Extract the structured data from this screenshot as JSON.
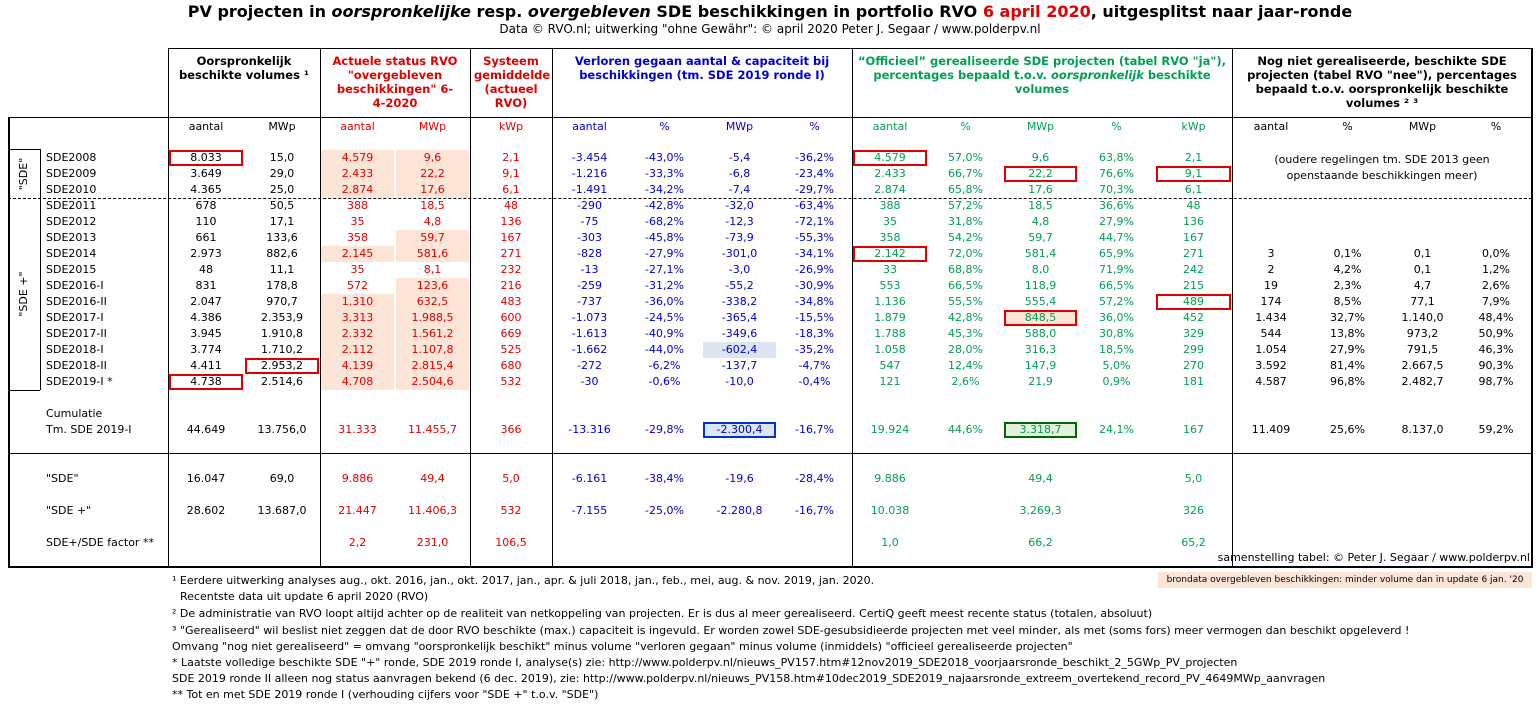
{
  "header": {
    "title": [
      "PV projecten in ",
      "oorspronkelijke",
      " resp. ",
      "overgebleven",
      " SDE beschikkingen in portfolio RVO ",
      "6 april 2020",
      ", uitgesplitst naar jaar-ronde"
    ],
    "subtitle": "Data © RVO.nl; uitwerking \"ohne Gewähr\": © april 2020 Peter J. Segaar / www.polderpv.nl"
  },
  "table": {
    "group_headers": [
      [
        "Oorspronkelijk beschikte volumes ¹"
      ],
      [
        "Actuele status RVO \"overgebleven beschikkingen\" 6-4-2020"
      ],
      [
        "Systeem gemiddelde (actueel RVO)"
      ],
      [
        "Verloren gegaan aantal & capaciteit bij beschikkingen (tm. SDE 2019 ronde I)"
      ],
      [
        "“Officieel” gerealiseerde SDE projecten (tabel RVO \"ja\"), percentages bepaald t.o.v. ",
        "oorspronkelijk",
        " beschikte volumes"
      ],
      [
        "Nog niet gerealiseerde, beschikte SDE projecten (tabel RVO \"nee\"), percentages bepaald t.o.v. oorspronkelijk beschikte volumes ² ³"
      ]
    ],
    "column_headers": [
      "aantal",
      "MWp",
      "aantal",
      "MWp",
      "kWp",
      "aantal",
      "%",
      "MWp",
      "%",
      "aantal",
      "%",
      "MWp",
      "%",
      "kWp",
      "aantal",
      "%",
      "MWp",
      "%"
    ],
    "row_groups": [
      "\"SDE\"",
      "\"SDE +\""
    ],
    "rows": [
      {
        "label": "SDE2008",
        "cells": [
          "8.033",
          "15,0",
          "4.579",
          "9,6",
          "2,1",
          "-3.454",
          "-43,0%",
          "-5,4",
          "-36,2%",
          "4.579",
          "57,0%",
          "9,6",
          "63,8%",
          "2,1"
        ]
      },
      {
        "label": "SDE2009",
        "cells": [
          "3.649",
          "29,0",
          "2.433",
          "22,2",
          "9,1",
          "-1.216",
          "-33,3%",
          "-6,8",
          "-23,4%",
          "2.433",
          "66,7%",
          "22,2",
          "76,6%",
          "9,1"
        ]
      },
      {
        "label": "SDE2010",
        "cells": [
          "4.365",
          "25,0",
          "2.874",
          "17,6",
          "6,1",
          "-1.491",
          "-34,2%",
          "-7,4",
          "-29,7%",
          "2.874",
          "65,8%",
          "17,6",
          "70,3%",
          "6,1"
        ]
      },
      {
        "label": "SDE2011",
        "cells": [
          "678",
          "50,5",
          "388",
          "18,5",
          "48",
          "-290",
          "-42,8%",
          "-32,0",
          "-63,4%",
          "388",
          "57,2%",
          "18,5",
          "36,6%",
          "48"
        ]
      },
      {
        "label": "SDE2012",
        "cells": [
          "110",
          "17,1",
          "35",
          "4,8",
          "136",
          "-75",
          "-68,2%",
          "-12,3",
          "-72,1%",
          "35",
          "31,8%",
          "4,8",
          "27,9%",
          "136"
        ]
      },
      {
        "label": "SDE2013",
        "cells": [
          "661",
          "133,6",
          "358",
          "59,7",
          "167",
          "-303",
          "-45,8%",
          "-73,9",
          "-55,3%",
          "358",
          "54,2%",
          "59,7",
          "44,7%",
          "167"
        ]
      },
      {
        "label": "SDE2014",
        "cells": [
          "2.973",
          "882,6",
          "2.145",
          "581,6",
          "271",
          "-828",
          "-27,9%",
          "-301,0",
          "-34,1%",
          "2.142",
          "72,0%",
          "581,4",
          "65,9%",
          "271",
          "3",
          "0,1%",
          "0,1",
          "0,0%"
        ]
      },
      {
        "label": "SDE2015",
        "cells": [
          "48",
          "11,1",
          "35",
          "8,1",
          "232",
          "-13",
          "-27,1%",
          "-3,0",
          "-26,9%",
          "33",
          "68,8%",
          "8,0",
          "71,9%",
          "242",
          "2",
          "4,2%",
          "0,1",
          "1,2%"
        ]
      },
      {
        "label": "SDE2016-I",
        "cells": [
          "831",
          "178,8",
          "572",
          "123,6",
          "216",
          "-259",
          "-31,2%",
          "-55,2",
          "-30,9%",
          "553",
          "66,5%",
          "118,9",
          "66,5%",
          "215",
          "19",
          "2,3%",
          "4,7",
          "2,6%"
        ]
      },
      {
        "label": "SDE2016-II",
        "cells": [
          "2.047",
          "970,7",
          "1.310",
          "632,5",
          "483",
          "-737",
          "-36,0%",
          "-338,2",
          "-34,8%",
          "1.136",
          "55,5%",
          "555,4",
          "57,2%",
          "489",
          "174",
          "8,5%",
          "77,1",
          "7,9%"
        ]
      },
      {
        "label": "SDE2017-I",
        "cells": [
          "4.386",
          "2.353,9",
          "3.313",
          "1.988,5",
          "600",
          "-1.073",
          "-24,5%",
          "-365,4",
          "-15,5%",
          "1.879",
          "42,8%",
          "848,5",
          "36,0%",
          "452",
          "1.434",
          "32,7%",
          "1.140,0",
          "48,4%"
        ]
      },
      {
        "label": "SDE2017-II",
        "cells": [
          "3.945",
          "1.910,8",
          "2.332",
          "1.561,2",
          "669",
          "-1.613",
          "-40,9%",
          "-349,6",
          "-18,3%",
          "1.788",
          "45,3%",
          "588,0",
          "30,8%",
          "329",
          "544",
          "13,8%",
          "973,2",
          "50,9%"
        ]
      },
      {
        "label": "SDE2018-I",
        "cells": [
          "3.774",
          "1.710,2",
          "2.112",
          "1.107,8",
          "525",
          "-1.662",
          "-44,0%",
          "-602,4",
          "-35,2%",
          "1.058",
          "28,0%",
          "316,3",
          "18,5%",
          "299",
          "1.054",
          "27,9%",
          "791,5",
          "46,3%"
        ]
      },
      {
        "label": "SDE2018-II",
        "cells": [
          "4.411",
          "2.953,2",
          "4.139",
          "2.815,4",
          "680",
          "-272",
          "-6,2%",
          "-137,7",
          "-4,7%",
          "547",
          "12,4%",
          "147,9",
          "5,0%",
          "270",
          "3.592",
          "81,4%",
          "2.667,5",
          "90,3%"
        ]
      },
      {
        "label": "SDE2019-I *",
        "cells": [
          "4.738",
          "2.514,6",
          "4.708",
          "2.504,6",
          "532",
          "-30",
          "-0,6%",
          "-10,0",
          "-0,4%",
          "121",
          "2,6%",
          "21,9",
          "0,9%",
          "181",
          "4.587",
          "96,8%",
          "2.482,7",
          "98,7%"
        ]
      }
    ],
    "older_note": "(oudere regelingen tm. SDE 2013 geen openstaande beschikkingen meer)",
    "cumulative": {
      "label": [
        "Cumulatie",
        "Tm. SDE 2019-I"
      ],
      "cells": [
        "44.649",
        "13.756,0",
        "31.333",
        "11.455,7",
        "366",
        "-13.316",
        "-29,8%",
        "-2.300,4",
        "-16,7%",
        "19.924",
        "44,6%",
        "3.318,7",
        "24,1%",
        "167",
        "11.409",
        "25,6%",
        "8.137,0",
        "59,2%"
      ]
    },
    "summary": [
      {
        "label": "\"SDE\"",
        "cells": [
          "16.047",
          "69,0",
          "9.886",
          "49,4",
          "5,0",
          "-6.161",
          "-38,4%",
          "-19,6",
          "-28,4%",
          "9.886",
          null,
          "49,4",
          null,
          "5,0"
        ]
      },
      {
        "label": "\"SDE +\"",
        "cells": [
          "28.602",
          "13.687,0",
          "21.447",
          "11.406,3",
          "532",
          "-7.155",
          "-25,0%",
          "-2.280,8",
          "-16,7%",
          "10.038",
          null,
          "3.269,3",
          null,
          "326"
        ]
      },
      {
        "label": "SDE+/SDE factor **",
        "cells": [
          null,
          null,
          "2,2",
          "231,0",
          "106,5",
          null,
          null,
          null,
          null,
          "1,0",
          null,
          "66,2",
          null,
          "65,2"
        ]
      }
    ],
    "credit": "samenstelling tabel: © Peter J. Segaar / www.polderpv.nl"
  },
  "legend_note": "brondata overgebleven beschikkingen: minder volume dan in update 6 jan. '20",
  "footnotes": [
    "¹ Eerdere uitwerking analyses aug., okt. 2016, jan., okt.  2017, jan., apr. & juli 2018, jan., feb., mei, aug. & nov. 2019, jan. 2020.",
    "Recentste data uit update 6 april 2020 (RVO)",
    "² De administratie van RVO loopt altijd achter op de realiteit van netkoppeling van projecten. Er is dus al meer gerealiseerd. CertiQ geeft meest recente status (totalen, absoluut)",
    "³ \"Gerealiseerd\" wil beslist niet zeggen dat de door RVO beschikte (max.) capaciteit is ingevuld. Er worden zowel SDE-gesubsidieerde projecten met veel minder,  als met (soms fors) meer  vermogen dan beschikt opgeleverd !",
    "Omvang \"nog niet gerealiseerd\" = omvang \"oorspronkelijk beschikt\" minus volume \"verloren gegaan\" minus volume (inmiddels) \"officieel gerealiseerde projecten\"",
    "* Laatste volledige beschikte SDE \"+\" ronde, SDE 2019 ronde I, analyse(s) zie: http://www.polderpv.nl/nieuws_PV157.htm#12nov2019_SDE2018_voorjaarsronde_beschikt_2_5GWp_PV_projecten",
    "SDE 2019 ronde II alleen nog status aanvragen bekend (6 dec. 2019), zie: http://www.polderpv.nl/nieuws_PV158.htm#10dec2019_SDE2019_najaarsronde_extreem_overtekend_record_PV_4649MWp_aanvragen",
    "** Tot en met SDE 2019 ronde I (verhouding cijfers voor \"SDE +\" t.o.v. \"SDE\")"
  ]
}
